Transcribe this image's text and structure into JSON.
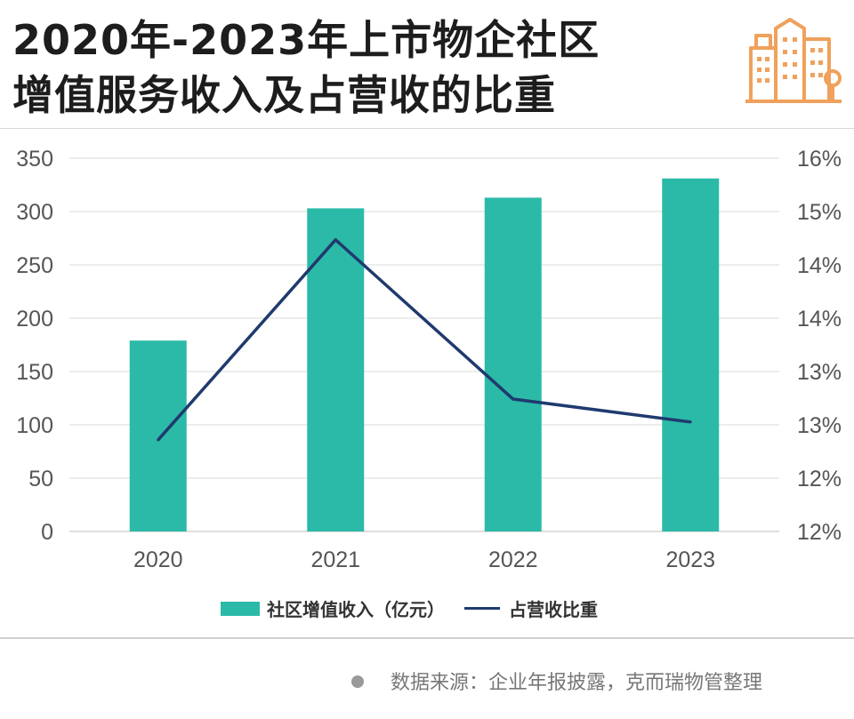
{
  "title": {
    "line1": "2020年-2023年上市物企社区",
    "line2": "增值服务收入及占营收的比重"
  },
  "logo_icon": "buildings-icon",
  "colors": {
    "bar": "#2bbaa8",
    "line": "#1f3a6e",
    "grid": "#e2e2e2",
    "logo": "#f0a15c"
  },
  "chart_data": {
    "type": "bar",
    "categories": [
      "2020",
      "2021",
      "2022",
      "2023"
    ],
    "series": [
      {
        "name": "社区增值收入（亿元）",
        "type": "bar",
        "axis": "left",
        "values": [
          179,
          303,
          313,
          331
        ]
      },
      {
        "name": "占营收比重",
        "type": "line",
        "axis": "right",
        "values": [
          12.92,
          14.93,
          13.33,
          13.1
        ]
      }
    ],
    "y_left": {
      "min": 0,
      "max": 350,
      "ticks": [
        "0",
        "50",
        "100",
        "150",
        "200",
        "250",
        "300",
        "350"
      ]
    },
    "y_right": {
      "min": 12.0,
      "max": 15.75,
      "ticks": [
        "12%",
        "12%",
        "13%",
        "13%",
        "14%",
        "14%",
        "15%",
        "16%"
      ]
    },
    "grid": true,
    "legend_position": "bottom"
  },
  "legend": {
    "bar_label": "社区增值收入（亿元）",
    "line_label": "占营收比重"
  },
  "source": "数据来源：企业年报披露，克而瑞物管整理"
}
